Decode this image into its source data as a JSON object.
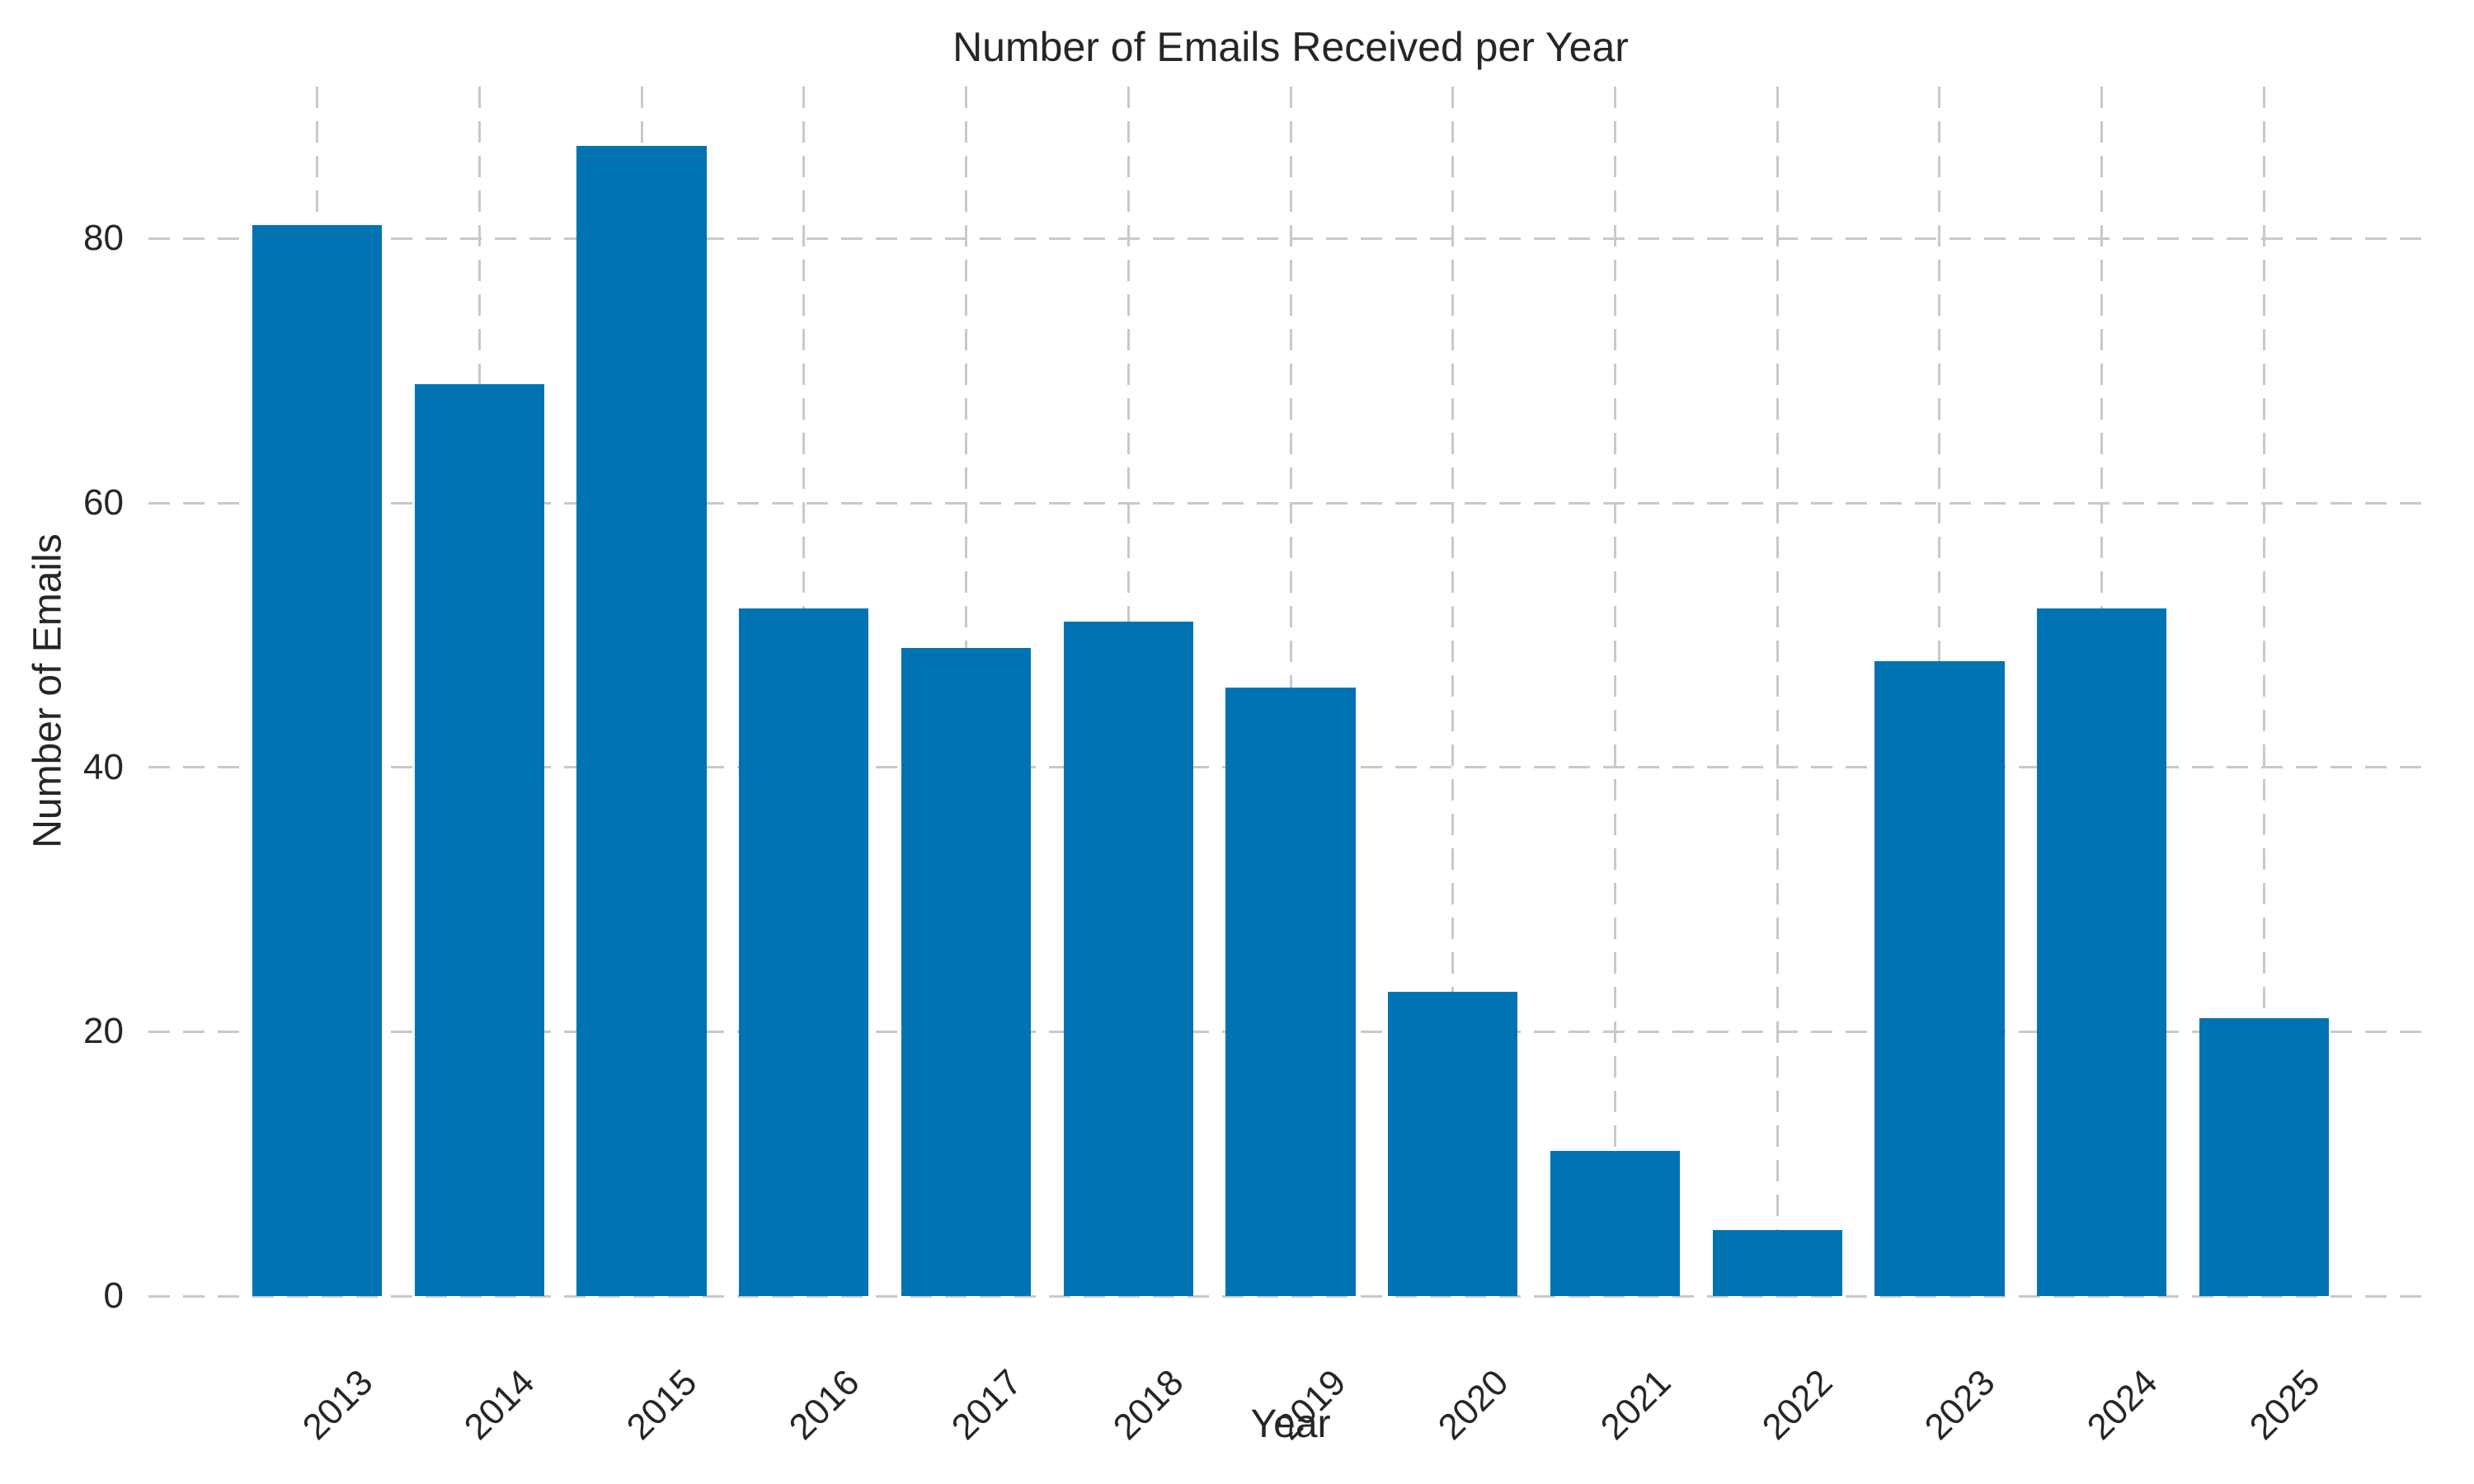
{
  "figure": {
    "background": "#ffffff"
  },
  "chart_data": {
    "type": "bar",
    "title": "Number of Emails Received per Year",
    "xlabel": "Year",
    "ylabel": "Number of Emails",
    "categories": [
      "2013",
      "2014",
      "2015",
      "2016",
      "2017",
      "2018",
      "2019",
      "2020",
      "2021",
      "2022",
      "2023",
      "2024",
      "2025"
    ],
    "values": [
      81,
      69,
      87,
      52,
      49,
      51,
      46,
      23,
      11,
      5,
      48,
      52,
      21
    ],
    "yticks": [
      0,
      20,
      40,
      60,
      80
    ],
    "ylim": [
      0,
      91.5
    ],
    "bar_color": "#0173b2",
    "grid": true,
    "grid_style": "dashed",
    "grid_color": "#c9c9c9",
    "text_color": "#262626",
    "legend": "none",
    "bar_width_fraction": 0.8
  }
}
